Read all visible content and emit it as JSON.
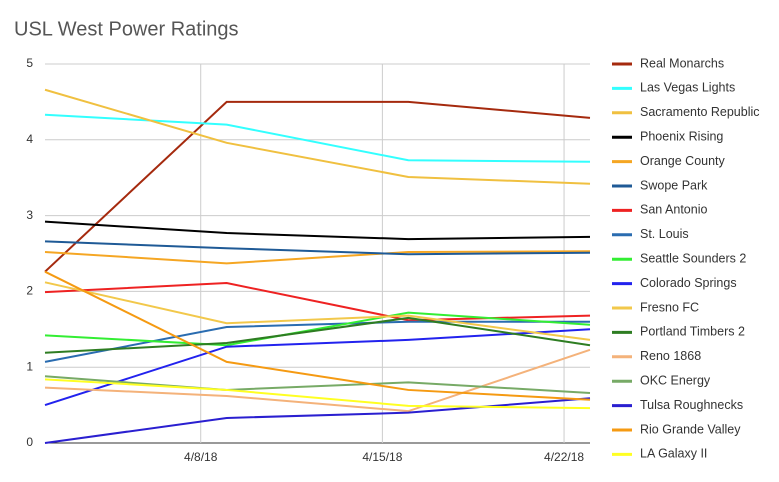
{
  "chart_data": {
    "type": "line",
    "title": "USL West Power Ratings",
    "x": [
      "2018-04-02",
      "2018-04-09",
      "2018-04-16",
      "2018-04-23"
    ],
    "xlim": [
      "2018-04-02",
      "2018-04-23"
    ],
    "xticks": [
      {
        "value": "2018-04-08",
        "label": "4/8/18"
      },
      {
        "value": "2018-04-15",
        "label": "4/15/18"
      },
      {
        "value": "2018-04-22",
        "label": "4/22/18"
      }
    ],
    "ylim": [
      0,
      5
    ],
    "yticks": [
      0,
      1,
      2,
      3,
      4,
      5
    ],
    "grid": true,
    "legend": "right",
    "series": [
      {
        "name": "Real Monarchs",
        "color": "#a52a0e",
        "values": [
          2.26,
          4.5,
          4.5,
          4.29
        ]
      },
      {
        "name": "Las Vegas Lights",
        "color": "#33ffff",
        "values": [
          4.33,
          4.2,
          3.73,
          3.71
        ]
      },
      {
        "name": "Sacramento Republic",
        "color": "#f0c040",
        "values": [
          4.66,
          3.96,
          3.51,
          3.42
        ]
      },
      {
        "name": "Phoenix Rising",
        "color": "#000000",
        "values": [
          2.92,
          2.77,
          2.69,
          2.72
        ]
      },
      {
        "name": "Orange County",
        "color": "#f5a623",
        "values": [
          2.52,
          2.37,
          2.52,
          2.53
        ]
      },
      {
        "name": "Swope Park",
        "color": "#1f5a96",
        "values": [
          2.66,
          2.57,
          2.49,
          2.51
        ]
      },
      {
        "name": "San Antonio",
        "color": "#ee2222",
        "values": [
          1.99,
          2.11,
          1.62,
          1.68
        ]
      },
      {
        "name": "St. Louis",
        "color": "#2a6cb0",
        "values": [
          1.07,
          1.53,
          1.6,
          1.6
        ]
      },
      {
        "name": "Seattle Sounders 2",
        "color": "#33ee33",
        "values": [
          1.42,
          1.29,
          1.72,
          1.56
        ]
      },
      {
        "name": "Colorado Springs",
        "color": "#2222ee",
        "values": [
          0.5,
          1.27,
          1.36,
          1.5
        ]
      },
      {
        "name": "Fresno FC",
        "color": "#f2c84b",
        "values": [
          2.12,
          1.58,
          1.68,
          1.36
        ]
      },
      {
        "name": "Portland Timbers 2",
        "color": "#2e7d22",
        "values": [
          1.19,
          1.32,
          1.65,
          1.29
        ]
      },
      {
        "name": "Reno 1868",
        "color": "#f4b27a",
        "values": [
          0.73,
          0.62,
          0.42,
          1.23
        ]
      },
      {
        "name": "OKC Energy",
        "color": "#77aa66",
        "values": [
          0.88,
          0.7,
          0.8,
          0.66
        ]
      },
      {
        "name": "Tulsa Roughnecks",
        "color": "#2a1fd0",
        "values": [
          0,
          0.33,
          0.4,
          0.59
        ]
      },
      {
        "name": "Rio Grande Valley",
        "color": "#f59a12",
        "values": [
          2.26,
          1.07,
          0.7,
          0.57
        ]
      },
      {
        "name": "LA Galaxy II",
        "color": "#ffff22",
        "values": [
          0.84,
          0.7,
          0.49,
          0.46
        ]
      }
    ]
  }
}
